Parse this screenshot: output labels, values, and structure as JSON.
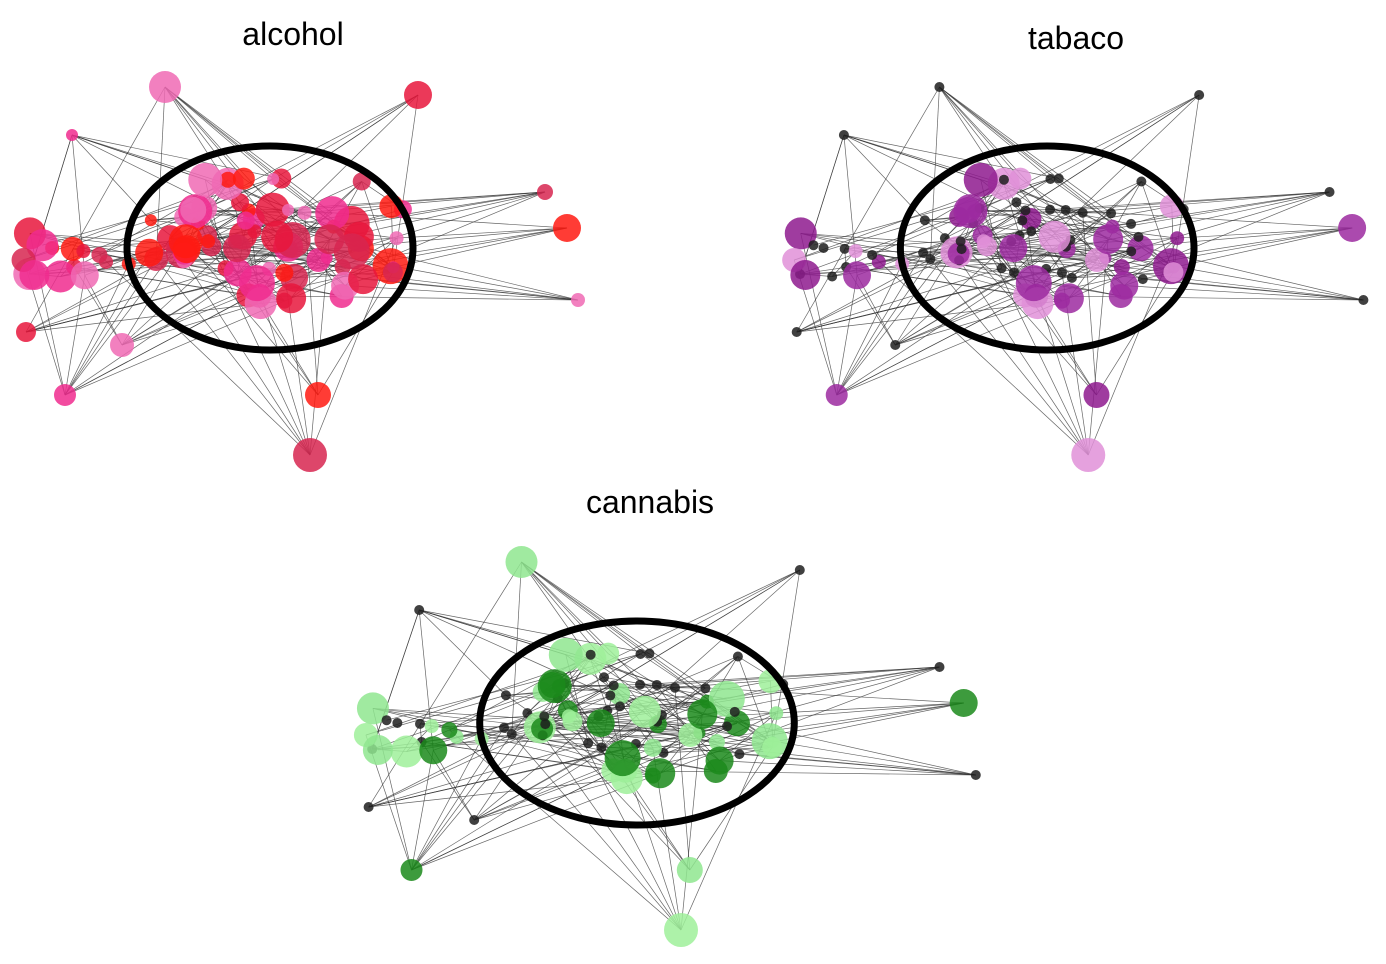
{
  "panels": [
    {
      "id": "alcohol",
      "title": "alcohol",
      "palette": [
        "#e8163c",
        "#f02c8e",
        "#d72650",
        "#ff1a12",
        "#f06ab4"
      ],
      "accent_ratio": 1.0
    },
    {
      "id": "tabaco",
      "title": "tabaco",
      "palette": [
        "#1f1f1f",
        "#8e1a8e",
        "#1f1f1f",
        "#9c2aa0",
        "#e090d8"
      ],
      "accent_ratio": 0.45
    },
    {
      "id": "cannabis",
      "title": "cannabis",
      "palette": [
        "#1f1f1f",
        "#8fe68f",
        "#1b8a1b",
        "#9ff09a",
        "#1f1f1f"
      ],
      "accent_ratio": 0.55
    }
  ],
  "highlight_color": "#000000",
  "edge_color": "#333333"
}
